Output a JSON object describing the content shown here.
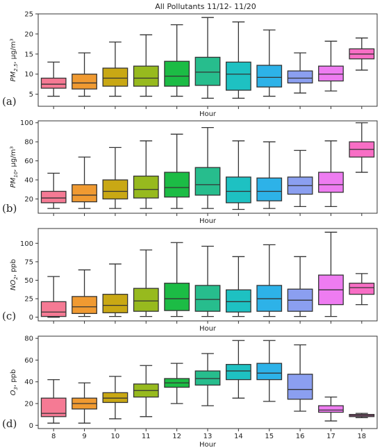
{
  "title": "All Pollutants 11/12- 11/20",
  "chart_data": [
    {
      "type": "boxplot",
      "panel_label": "(a)",
      "xlabel": "Hour",
      "ylabel_main": "PM",
      "ylabel_sub": "2.5",
      "ylabel_unit": ", μg/m³",
      "ylim": [
        2,
        25
      ],
      "yticks": [
        5,
        10,
        15,
        20,
        25
      ],
      "categories": [
        "8",
        "9",
        "10",
        "11",
        "12",
        "13",
        "14",
        "15",
        "16",
        "17",
        "18"
      ],
      "boxes": [
        {
          "hour": "8",
          "whislo": 4.5,
          "q1": 6.5,
          "med": 7.5,
          "q3": 9.0,
          "whishi": 13.0
        },
        {
          "hour": "9",
          "whislo": 4.5,
          "q1": 6.3,
          "med": 7.8,
          "q3": 10.0,
          "whishi": 15.3
        },
        {
          "hour": "10",
          "whislo": 4.5,
          "q1": 7.0,
          "med": 9.0,
          "q3": 11.5,
          "whishi": 18.0
        },
        {
          "hour": "11",
          "whislo": 4.5,
          "q1": 7.0,
          "med": 9.0,
          "q3": 12.0,
          "whishi": 19.8
        },
        {
          "hour": "12",
          "whislo": 4.5,
          "q1": 7.0,
          "med": 9.5,
          "q3": 13.2,
          "whishi": 22.3
        },
        {
          "hour": "13",
          "whislo": 4.0,
          "q1": 7.2,
          "med": 10.5,
          "q3": 14.2,
          "whishi": 24.1
        },
        {
          "hour": "14",
          "whislo": 4.0,
          "q1": 6.0,
          "med": 10.0,
          "q3": 13.0,
          "whishi": 23.0
        },
        {
          "hour": "15",
          "whislo": 4.5,
          "q1": 6.8,
          "med": 9.2,
          "q3": 12.2,
          "whishi": 21.0
        },
        {
          "hour": "16",
          "whislo": 5.3,
          "q1": 7.8,
          "med": 9.0,
          "q3": 10.8,
          "whishi": 15.3
        },
        {
          "hour": "17",
          "whislo": 5.8,
          "q1": 8.3,
          "med": 10.0,
          "q3": 12.0,
          "whishi": 18.2
        },
        {
          "hour": "18",
          "whislo": 11.0,
          "q1": 13.8,
          "med": 15.0,
          "q3": 16.3,
          "whishi": 19.0
        }
      ]
    },
    {
      "type": "boxplot",
      "panel_label": "(b)",
      "xlabel": "Hour",
      "ylabel_main": "PM",
      "ylabel_sub": "10",
      "ylabel_unit": ", μg/m³",
      "ylim": [
        5,
        102
      ],
      "yticks": [
        20,
        40,
        60,
        80,
        100
      ],
      "categories": [
        "8",
        "9",
        "10",
        "11",
        "12",
        "13",
        "14",
        "15",
        "16",
        "17",
        "18"
      ],
      "boxes": [
        {
          "hour": "8",
          "whislo": 10,
          "q1": 16,
          "med": 21,
          "q3": 28,
          "whishi": 47
        },
        {
          "hour": "9",
          "whislo": 10,
          "q1": 17,
          "med": 24,
          "q3": 35,
          "whishi": 64
        },
        {
          "hour": "10",
          "whislo": 10,
          "q1": 20,
          "med": 28,
          "q3": 40,
          "whishi": 74
        },
        {
          "hour": "11",
          "whislo": 10,
          "q1": 21,
          "med": 30,
          "q3": 44,
          "whishi": 81
        },
        {
          "hour": "12",
          "whislo": 10,
          "q1": 22,
          "med": 32,
          "q3": 48,
          "whishi": 88
        },
        {
          "hour": "13",
          "whislo": 10,
          "q1": 24,
          "med": 35,
          "q3": 53,
          "whishi": 95
        },
        {
          "hour": "14",
          "whislo": 9,
          "q1": 16,
          "med": 28,
          "q3": 43,
          "whishi": 81
        },
        {
          "hour": "15",
          "whislo": 10,
          "q1": 18,
          "med": 28,
          "q3": 42,
          "whishi": 80
        },
        {
          "hour": "16",
          "whislo": 12,
          "q1": 25,
          "med": 34,
          "q3": 43,
          "whishi": 71
        },
        {
          "hour": "17",
          "whislo": 12,
          "q1": 27,
          "med": 35,
          "q3": 48,
          "whishi": 81
        },
        {
          "hour": "18",
          "whislo": 48,
          "q1": 64,
          "med": 72,
          "q3": 80,
          "whishi": 100
        }
      ]
    },
    {
      "type": "boxplot",
      "panel_label": "(c)",
      "xlabel": "Hour",
      "ylabel_main": "NO",
      "ylabel_sub": "2",
      "ylabel_unit": ", ppb",
      "ylim": [
        -5,
        120
      ],
      "yticks": [
        0,
        25,
        50,
        75,
        100
      ],
      "categories": [
        "8",
        "9",
        "10",
        "11",
        "12",
        "13",
        "14",
        "15",
        "16",
        "17",
        "18"
      ],
      "boxes": [
        {
          "hour": "8",
          "whislo": 0,
          "q1": 1,
          "med": 7,
          "q3": 21,
          "whishi": 55
        },
        {
          "hour": "9",
          "whislo": 1,
          "q1": 5,
          "med": 14,
          "q3": 28,
          "whishi": 64
        },
        {
          "hour": "10",
          "whislo": 1,
          "q1": 6,
          "med": 16,
          "q3": 31,
          "whishi": 72
        },
        {
          "hour": "11",
          "whislo": 1,
          "q1": 8,
          "med": 22,
          "q3": 39,
          "whishi": 91
        },
        {
          "hour": "12",
          "whislo": 1,
          "q1": 9,
          "med": 25,
          "q3": 46,
          "whishi": 101
        },
        {
          "hour": "13",
          "whislo": 1,
          "q1": 8,
          "med": 24,
          "q3": 43,
          "whishi": 96
        },
        {
          "hour": "14",
          "whislo": 1,
          "q1": 7,
          "med": 21,
          "q3": 37,
          "whishi": 82
        },
        {
          "hour": "15",
          "whislo": 1,
          "q1": 8,
          "med": 25,
          "q3": 43,
          "whishi": 98
        },
        {
          "hour": "16",
          "whislo": 1,
          "q1": 8,
          "med": 23,
          "q3": 38,
          "whishi": 82
        },
        {
          "hour": "17",
          "whislo": 1,
          "q1": 17,
          "med": 37,
          "q3": 57,
          "whishi": 115
        },
        {
          "hour": "18",
          "whislo": 17,
          "q1": 31,
          "med": 40,
          "q3": 46,
          "whishi": 59
        }
      ]
    },
    {
      "type": "boxplot",
      "panel_label": "(d)",
      "xlabel": "Hour",
      "ylabel_main": "O",
      "ylabel_sub": "3",
      "ylabel_unit": ", ppb",
      "ylim": [
        -3,
        82
      ],
      "yticks": [
        0,
        20,
        40,
        60,
        80
      ],
      "categories": [
        "8",
        "9",
        "10",
        "11",
        "12",
        "13",
        "14",
        "15",
        "16",
        "17",
        "18"
      ],
      "boxes": [
        {
          "hour": "8",
          "whislo": 2,
          "q1": 8,
          "med": 11,
          "q3": 25,
          "whishi": 42
        },
        {
          "hour": "9",
          "whislo": 2,
          "q1": 15,
          "med": 20,
          "q3": 25,
          "whishi": 39
        },
        {
          "hour": "10",
          "whislo": 6,
          "q1": 21,
          "med": 25,
          "q3": 30,
          "whishi": 45
        },
        {
          "hour": "11",
          "whislo": 8,
          "q1": 26,
          "med": 32,
          "q3": 38,
          "whishi": 55
        },
        {
          "hour": "12",
          "whislo": 20,
          "q1": 35,
          "med": 39,
          "q3": 43,
          "whishi": 57
        },
        {
          "hour": "13",
          "whislo": 18,
          "q1": 37,
          "med": 43,
          "q3": 50,
          "whishi": 66
        },
        {
          "hour": "14",
          "whislo": 25,
          "q1": 42,
          "med": 50,
          "q3": 56,
          "whishi": 78
        },
        {
          "hour": "15",
          "whislo": 22,
          "q1": 42,
          "med": 48,
          "q3": 57,
          "whishi": 78
        },
        {
          "hour": "16",
          "whislo": 13,
          "q1": 24,
          "med": 33,
          "q3": 47,
          "whishi": 74
        },
        {
          "hour": "17",
          "whislo": 4,
          "q1": 12,
          "med": 14,
          "q3": 18,
          "whishi": 26
        },
        {
          "hour": "18",
          "whislo": 7,
          "q1": 8,
          "med": 9,
          "q3": 10,
          "whishi": 11
        }
      ]
    }
  ],
  "colors": [
    "#f57a94",
    "#f09a31",
    "#c9a814",
    "#97ba1e",
    "#1cbc45",
    "#27bd8d",
    "#1ec1c2",
    "#2db2e8",
    "#8b9ff0",
    "#ee7cf1",
    "#f86ec5"
  ],
  "outline_color": "#333333"
}
